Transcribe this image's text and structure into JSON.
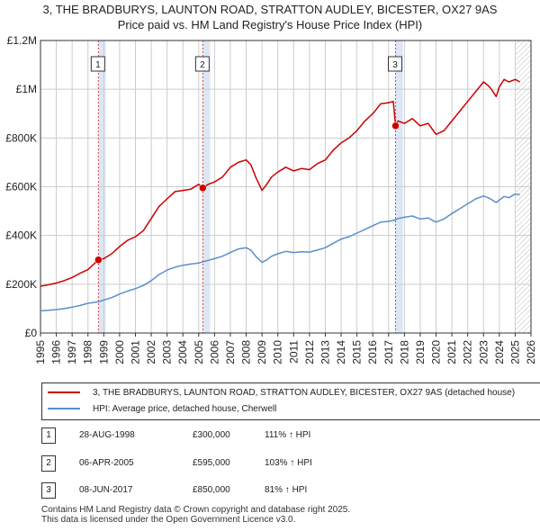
{
  "chart_data": {
    "type": "line",
    "title": "3, THE BRADBURYS, LAUNTON ROAD, STRATTON AUDLEY, BICESTER, OX27 9AS",
    "subtitle": "Price paid vs. HM Land Registry's House Price Index (HPI)",
    "xlim": [
      1995,
      2026
    ],
    "ylim": [
      0,
      1200000
    ],
    "x_ticks": [
      1995,
      1996,
      1997,
      1998,
      1999,
      2000,
      2001,
      2002,
      2003,
      2004,
      2005,
      2006,
      2007,
      2008,
      2009,
      2010,
      2011,
      2012,
      2013,
      2014,
      2015,
      2016,
      2017,
      2018,
      2019,
      2020,
      2021,
      2022,
      2023,
      2024,
      2025,
      2026
    ],
    "y_ticks": [
      {
        "value": 0,
        "label": "£0"
      },
      {
        "value": 200000,
        "label": "£200K"
      },
      {
        "value": 400000,
        "label": "£400K"
      },
      {
        "value": 600000,
        "label": "£600K"
      },
      {
        "value": 800000,
        "label": "£800K"
      },
      {
        "value": 1000000,
        "label": "£1M"
      },
      {
        "value": 1200000,
        "label": "£1.2M"
      }
    ],
    "sale_bands": [
      [
        1998.66,
        1999.12
      ],
      [
        2005.26,
        2005.72
      ],
      [
        2017.44,
        2017.9
      ]
    ],
    "forecast_start": 2025.05,
    "series": [
      {
        "name": "3, THE BRADBURYS, LAUNTON ROAD, STRATTON AUDLEY, BICESTER, OX27 9AS (detached house)",
        "color": "#cc0000",
        "x": [
          1995.0,
          1995.5,
          1996.0,
          1996.5,
          1997.0,
          1997.5,
          1998.0,
          1998.66,
          1999.0,
          1999.5,
          2000.0,
          2000.5,
          2001.0,
          2001.5,
          2002.0,
          2002.5,
          2003.0,
          2003.5,
          2004.0,
          2004.5,
          2005.0,
          2005.26,
          2005.6,
          2006.0,
          2006.5,
          2007.0,
          2007.5,
          2008.0,
          2008.3,
          2008.6,
          2009.0,
          2009.3,
          2009.6,
          2010.0,
          2010.5,
          2011.0,
          2011.5,
          2012.0,
          2012.5,
          2013.0,
          2013.5,
          2014.0,
          2014.5,
          2015.0,
          2015.5,
          2016.0,
          2016.5,
          2017.0,
          2017.3,
          2017.44,
          2017.6,
          2018.0,
          2018.5,
          2019.0,
          2019.5,
          2020.0,
          2020.5,
          2021.0,
          2021.5,
          2022.0,
          2022.5,
          2023.0,
          2023.3,
          2023.5,
          2023.8,
          2024.0,
          2024.3,
          2024.6,
          2025.0,
          2025.3
        ],
        "values": [
          192000,
          198000,
          205000,
          215000,
          228000,
          245000,
          260000,
          300000,
          305000,
          325000,
          355000,
          380000,
          395000,
          420000,
          470000,
          520000,
          550000,
          580000,
          585000,
          590000,
          610000,
          595000,
          610000,
          620000,
          640000,
          680000,
          700000,
          710000,
          690000,
          640000,
          585000,
          610000,
          640000,
          660000,
          680000,
          665000,
          675000,
          670000,
          695000,
          710000,
          750000,
          780000,
          800000,
          830000,
          870000,
          900000,
          940000,
          945000,
          950000,
          850000,
          870000,
          860000,
          880000,
          850000,
          860000,
          815000,
          830000,
          870000,
          910000,
          950000,
          990000,
          1030000,
          1015000,
          1000000,
          970000,
          1010000,
          1040000,
          1030000,
          1040000,
          1030000
        ]
      },
      {
        "name": "HPI: Average price, detached house, Cherwell",
        "color": "#5b8fc9",
        "x": [
          1995.0,
          1995.5,
          1996.0,
          1996.5,
          1997.0,
          1997.5,
          1998.0,
          1998.66,
          1999.0,
          1999.5,
          2000.0,
          2000.5,
          2001.0,
          2001.5,
          2002.0,
          2002.5,
          2003.0,
          2003.5,
          2004.0,
          2004.5,
          2005.0,
          2005.26,
          2005.6,
          2006.0,
          2006.5,
          2007.0,
          2007.5,
          2008.0,
          2008.3,
          2008.6,
          2009.0,
          2009.3,
          2009.6,
          2010.0,
          2010.5,
          2011.0,
          2011.5,
          2012.0,
          2012.5,
          2013.0,
          2013.5,
          2014.0,
          2014.5,
          2015.0,
          2015.5,
          2016.0,
          2016.5,
          2017.0,
          2017.3,
          2017.44,
          2017.6,
          2018.0,
          2018.5,
          2019.0,
          2019.5,
          2020.0,
          2020.5,
          2021.0,
          2021.5,
          2022.0,
          2022.5,
          2023.0,
          2023.3,
          2023.5,
          2023.8,
          2024.0,
          2024.3,
          2024.6,
          2025.0,
          2025.3
        ],
        "values": [
          91000,
          93000,
          96000,
          100000,
          106000,
          113000,
          122000,
          128000,
          135000,
          145000,
          160000,
          172000,
          182000,
          195000,
          215000,
          240000,
          258000,
          270000,
          278000,
          283000,
          287000,
          292000,
          298000,
          305000,
          315000,
          330000,
          345000,
          350000,
          340000,
          315000,
          290000,
          300000,
          315000,
          325000,
          335000,
          330000,
          333000,
          332000,
          340000,
          350000,
          368000,
          385000,
          395000,
          410000,
          425000,
          440000,
          455000,
          458000,
          462000,
          465000,
          470000,
          475000,
          480000,
          468000,
          472000,
          455000,
          468000,
          490000,
          510000,
          530000,
          550000,
          562000,
          555000,
          548000,
          535000,
          545000,
          560000,
          555000,
          570000,
          568000
        ]
      }
    ],
    "sales": [
      {
        "label": "1",
        "x": 1998.66,
        "value": 300000
      },
      {
        "label": "2",
        "x": 2005.26,
        "value": 595000
      },
      {
        "label": "3",
        "x": 2017.44,
        "value": 850000
      }
    ]
  },
  "legend": {
    "property_label": "3, THE BRADBURYS, LAUNTON ROAD, STRATTON AUDLEY, BICESTER, OX27 9AS (detached house)",
    "hpi_label": "HPI: Average price, detached house, Cherwell"
  },
  "sales_table": [
    {
      "marker": "1",
      "date": "28-AUG-1998",
      "price": "£300,000",
      "hpi": "111% ↑ HPI"
    },
    {
      "marker": "2",
      "date": "06-APR-2005",
      "price": "£595,000",
      "hpi": "103% ↑ HPI"
    },
    {
      "marker": "3",
      "date": "08-JUN-2017",
      "price": "£850,000",
      "hpi": "81% ↑ HPI"
    }
  ],
  "footer": {
    "line1": "Contains HM Land Registry data © Crown copyright and database right 2025.",
    "line2": "This data is licensed under the Open Government Licence v3.0."
  },
  "colors": {
    "property": "#cc0000",
    "hpi": "#5b8fc9",
    "band": "#dde6f4",
    "grid": "#cccccc"
  }
}
